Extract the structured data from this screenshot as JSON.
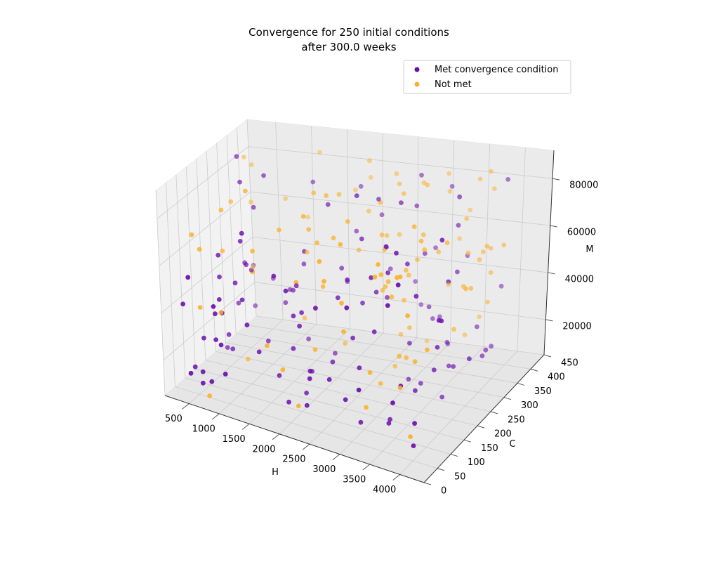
{
  "chart_data": {
    "type": "scatter",
    "projection": "3d",
    "title_line1": "Convergence for 250 initial conditions",
    "title_line2": "after 300.0 weeks",
    "xlabel": "H",
    "ylabel": "C",
    "zlabel": "M",
    "xlim": [
      100,
      4400
    ],
    "ylim": [
      0,
      450
    ],
    "zlim": [
      5000,
      92000
    ],
    "x_ticks": [
      "500",
      "1000",
      "1500",
      "2000",
      "2500",
      "3000",
      "3500",
      "4000"
    ],
    "y_ticks": [
      "0",
      "50",
      "100",
      "150",
      "200",
      "250",
      "300",
      "350",
      "400",
      "450"
    ],
    "z_ticks": [
      "20000",
      "40000",
      "60000",
      "80000"
    ],
    "grid": true,
    "legend_position": "upper-right",
    "colors": {
      "met": "#6a0dad",
      "not_met": "#fbb12c",
      "pane": "#f2f2f2",
      "grid": "#cccccc"
    },
    "series": [
      {
        "name": "Met convergence condition",
        "key": "met"
      },
      {
        "name": "Not met",
        "key": "not_met"
      }
    ]
  }
}
